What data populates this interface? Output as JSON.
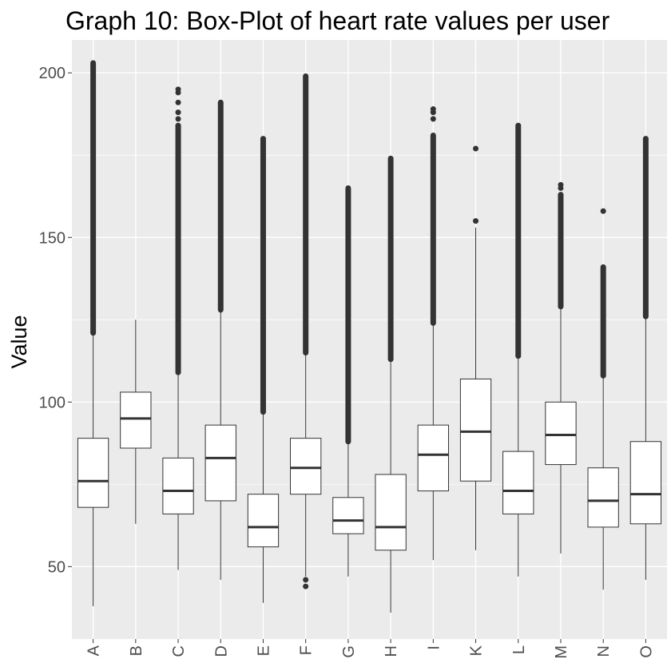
{
  "chart_data": {
    "type": "boxplot",
    "title": "Graph 10: Box-Plot of heart rate values per user",
    "xlabel": "",
    "ylabel": "Value",
    "ylim": [
      28,
      210
    ],
    "yticks": [
      50,
      100,
      150,
      200
    ],
    "grid": true,
    "colors": {
      "panel_bg": "#ebebeb",
      "grid": "#ffffff",
      "box_fill": "#ffffff",
      "line": "#333333",
      "outlier": "#333333"
    },
    "categories": [
      "A",
      "B",
      "C",
      "D",
      "E",
      "F",
      "G",
      "H",
      "I",
      "K",
      "L",
      "M",
      "N",
      "O"
    ],
    "boxes": [
      {
        "label": "A",
        "low": 38,
        "q1": 68,
        "median": 76,
        "q3": 89,
        "high": 121,
        "outlier_ranges": [
          [
            121,
            203
          ]
        ],
        "outliers": []
      },
      {
        "label": "B",
        "low": 63,
        "q1": 86,
        "median": 95,
        "q3": 103,
        "high": 125,
        "outlier_ranges": [],
        "outliers": []
      },
      {
        "label": "C",
        "low": 49,
        "q1": 66,
        "median": 73,
        "q3": 83,
        "high": 109,
        "outlier_ranges": [
          [
            109,
            184
          ]
        ],
        "outliers": [
          186,
          188,
          191,
          194,
          195
        ]
      },
      {
        "label": "D",
        "low": 46,
        "q1": 70,
        "median": 83,
        "q3": 93,
        "high": 128,
        "outlier_ranges": [
          [
            128,
            191
          ]
        ],
        "outliers": []
      },
      {
        "label": "E",
        "low": 39,
        "q1": 56,
        "median": 62,
        "q3": 72,
        "high": 97,
        "outlier_ranges": [
          [
            97,
            180
          ]
        ],
        "outliers": []
      },
      {
        "label": "F",
        "low": 47,
        "q1": 72,
        "median": 80,
        "q3": 89,
        "high": 115,
        "outlier_ranges": [
          [
            115,
            199
          ]
        ],
        "outliers": [
          44,
          46
        ]
      },
      {
        "label": "G",
        "low": 47,
        "q1": 60,
        "median": 64,
        "q3": 71,
        "high": 88,
        "outlier_ranges": [
          [
            88,
            165
          ]
        ],
        "outliers": []
      },
      {
        "label": "H",
        "low": 36,
        "q1": 55,
        "median": 62,
        "q3": 78,
        "high": 113,
        "outlier_ranges": [
          [
            113,
            174
          ]
        ],
        "outliers": []
      },
      {
        "label": "I",
        "low": 52,
        "q1": 73,
        "median": 84,
        "q3": 93,
        "high": 124,
        "outlier_ranges": [
          [
            124,
            181
          ]
        ],
        "outliers": [
          186,
          188,
          189
        ]
      },
      {
        "label": "K",
        "low": 55,
        "q1": 76,
        "median": 91,
        "q3": 107,
        "high": 153,
        "outlier_ranges": [],
        "outliers": [
          155,
          177
        ]
      },
      {
        "label": "L",
        "low": 47,
        "q1": 66,
        "median": 73,
        "q3": 85,
        "high": 114,
        "outlier_ranges": [
          [
            114,
            184
          ]
        ],
        "outliers": []
      },
      {
        "label": "M",
        "low": 54,
        "q1": 81,
        "median": 90,
        "q3": 100,
        "high": 129,
        "outlier_ranges": [
          [
            129,
            163
          ]
        ],
        "outliers": [
          165,
          166
        ]
      },
      {
        "label": "N",
        "low": 43,
        "q1": 62,
        "median": 70,
        "q3": 80,
        "high": 108,
        "outlier_ranges": [
          [
            108,
            141
          ]
        ],
        "outliers": [
          158
        ]
      },
      {
        "label": "O",
        "low": 46,
        "q1": 63,
        "median": 72,
        "q3": 88,
        "high": 126,
        "outlier_ranges": [
          [
            126,
            180
          ]
        ],
        "outliers": []
      }
    ]
  }
}
